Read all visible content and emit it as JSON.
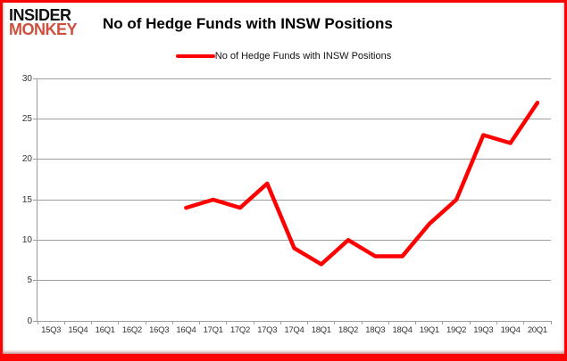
{
  "logo": {
    "line1": "INSIDER",
    "line2": "MONKEY"
  },
  "header": {
    "title": "No of Hedge Funds with INSW Positions"
  },
  "legend": {
    "label": "No of Hedge Funds with INSW Positions"
  },
  "colors": {
    "series_red": "#fe0000",
    "frame_border_red": "#fb0404",
    "logo_black": "#111111",
    "logo_red": "#cd4f3e",
    "gridline_gray": "#9d9d9d",
    "tick_text": "#333333"
  },
  "chart_data": {
    "type": "line",
    "title": "No of Hedge Funds with INSW Positions",
    "categories": [
      "15Q3",
      "15Q4",
      "16Q1",
      "16Q2",
      "16Q3",
      "16Q4",
      "17Q1",
      "17Q2",
      "17Q3",
      "17Q4",
      "18Q1",
      "18Q2",
      "18Q3",
      "18Q4",
      "19Q1",
      "19Q2",
      "19Q3",
      "19Q4",
      "20Q1"
    ],
    "series": [
      {
        "name": "No of Hedge Funds with INSW Positions",
        "color": "#fe0000",
        "values": [
          null,
          null,
          null,
          null,
          null,
          14,
          15,
          14,
          17,
          9,
          7,
          10,
          8,
          8,
          12,
          15,
          23,
          22,
          27
        ]
      }
    ],
    "xlabel": "",
    "ylabel": "",
    "ylim": [
      0,
      30
    ],
    "yticks": [
      0,
      5,
      10,
      15,
      20,
      25,
      30
    ],
    "grid": "horizontal",
    "legend_position": "top-center"
  }
}
